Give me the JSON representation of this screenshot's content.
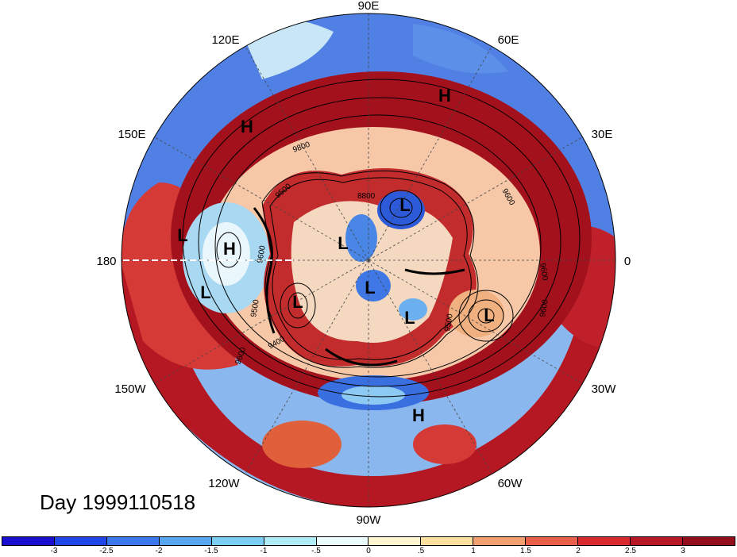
{
  "title": "Day 1999110518",
  "longitude_labels": {
    "top": "90E",
    "top_right": "60E",
    "right_upper": "30E",
    "right": "0",
    "right_lower": "30W",
    "bottom_right": "60W",
    "bottom": "90W",
    "bottom_left": "120W",
    "left_lower": "150W",
    "left": "180",
    "left_upper": "150E",
    "top_left": "120E"
  },
  "pressure_centers": [
    {
      "type": "H",
      "label": "H"
    },
    {
      "type": "H",
      "label": "H"
    },
    {
      "type": "H",
      "label": "H"
    },
    {
      "type": "H",
      "label": "H"
    },
    {
      "type": "L",
      "label": "L"
    },
    {
      "type": "L",
      "label": "L"
    },
    {
      "type": "L",
      "label": "L"
    },
    {
      "type": "L",
      "label": "L"
    },
    {
      "type": "L",
      "label": "L"
    },
    {
      "type": "L",
      "label": "L"
    },
    {
      "type": "L",
      "label": "L"
    },
    {
      "type": "L",
      "label": "L"
    }
  ],
  "contour_labels": [
    "9600",
    "9600",
    "9500",
    "9500",
    "9600",
    "9600",
    "9400",
    "8800",
    "9500",
    "9800",
    "9600"
  ],
  "colorbar": {
    "colors": [
      "#1a0fd0",
      "#2045e8",
      "#3a78ec",
      "#58a6f0",
      "#7ccdf4",
      "#b0ecf8",
      "#ecfbfc",
      "#fdf6d0",
      "#fbe0a0",
      "#f2a070",
      "#e8604a",
      "#d92a30",
      "#b71824",
      "#930d1a"
    ],
    "tick_labels": [
      "-3",
      "-2.5",
      "-2",
      "-1.5",
      "-1",
      "-.5",
      "0",
      ".5",
      "1",
      "1.5",
      "2",
      "2.5",
      "3"
    ]
  }
}
